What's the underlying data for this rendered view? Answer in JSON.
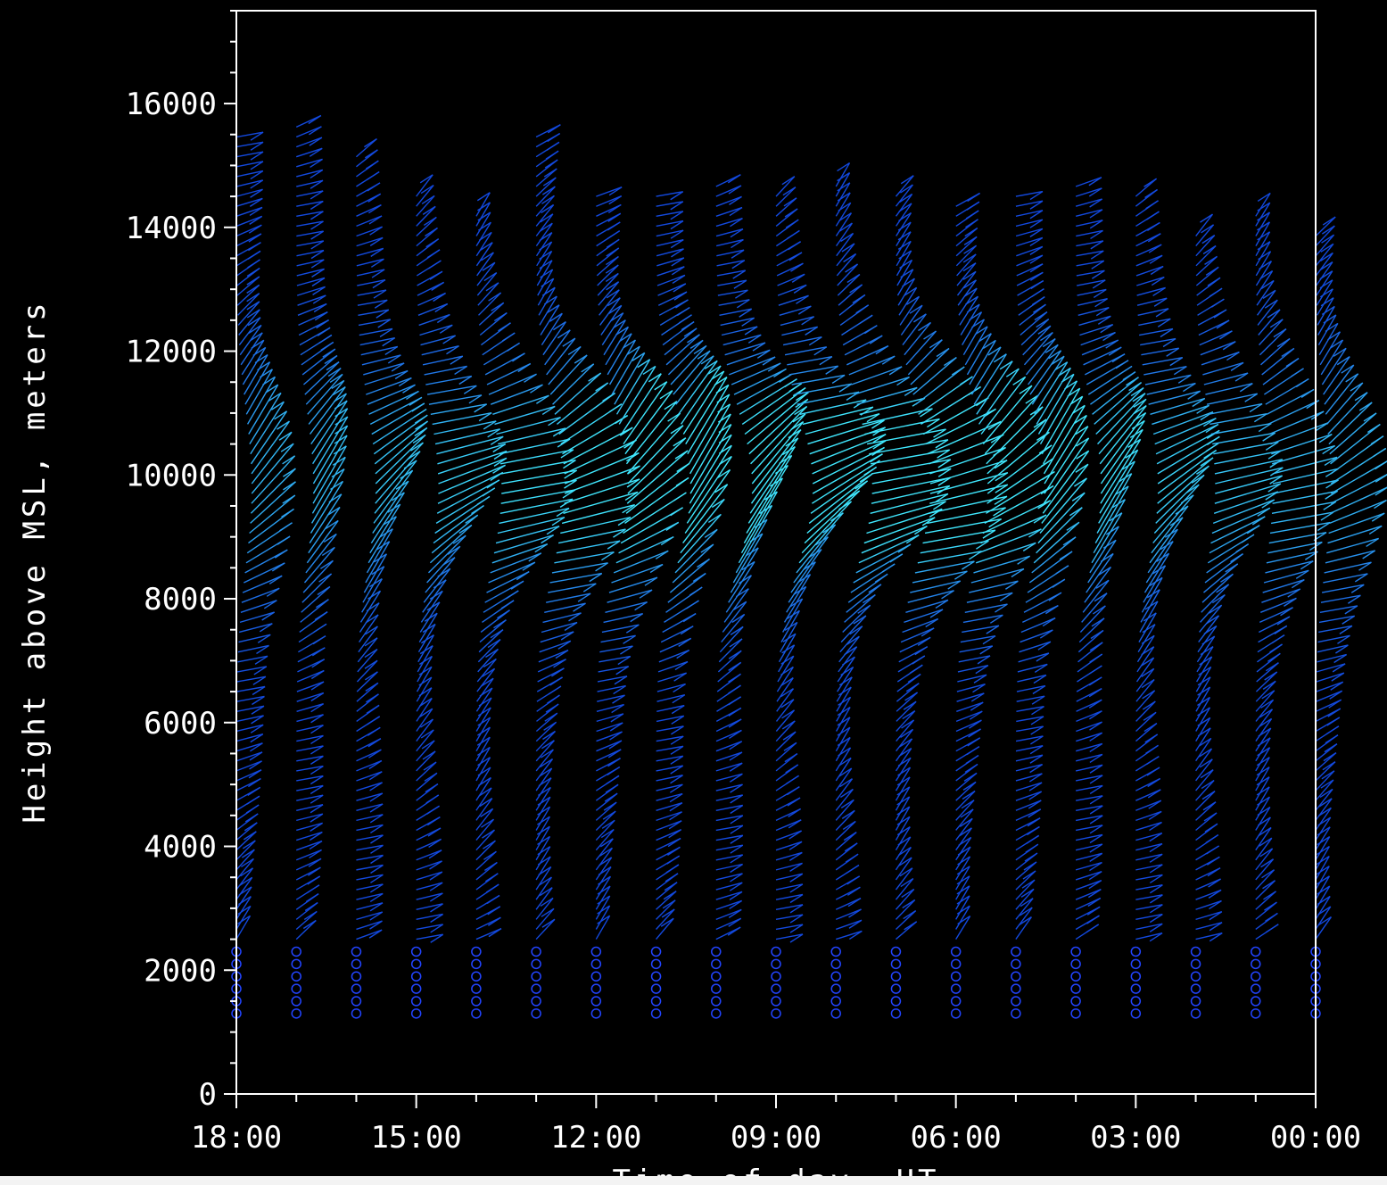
{
  "chart_data": {
    "type": "wind-barb time-height",
    "title": "",
    "ylabel": "Height above MSL, meters",
    "xlabel": "Time of day, UT",
    "ylim": [
      0,
      17500
    ],
    "xlim_hours_ut": [
      18,
      0
    ],
    "x_direction": "reversed",
    "yticks": [
      "0",
      "2000",
      "4000",
      "6000",
      "8000",
      "10000",
      "12000",
      "14000",
      "16000"
    ],
    "xticks": [
      "18:00",
      "15:00",
      "12:00",
      "09:00",
      "06:00",
      "03:00",
      "00:00"
    ],
    "profile_times_ut": [
      "18:00",
      "17:00",
      "16:00",
      "15:00",
      "14:00",
      "13:00",
      "12:00",
      "11:00",
      "10:00",
      "09:00",
      "08:00",
      "07:00",
      "06:00",
      "05:00",
      "04:00",
      "03:00",
      "02:00",
      "01:00",
      "00:00"
    ],
    "calm_marker_heights_m": [
      1300,
      1500,
      1700,
      1900,
      2100,
      2300
    ],
    "barb_top_heights_m": [
      15500,
      15700,
      15200,
      14500,
      14300,
      15500,
      14600,
      14500,
      14700,
      14600,
      14700,
      14600,
      14400,
      14600,
      14700,
      14500,
      14000,
      14200,
      14000
    ],
    "jet_core_height_m": 9800,
    "max_speed_color": "#40e8ff",
    "min_speed_color": "#0b2ed8",
    "colors": {
      "background": "#000000",
      "axes": "#ffffff",
      "calm_marker": "#2244ff"
    }
  }
}
